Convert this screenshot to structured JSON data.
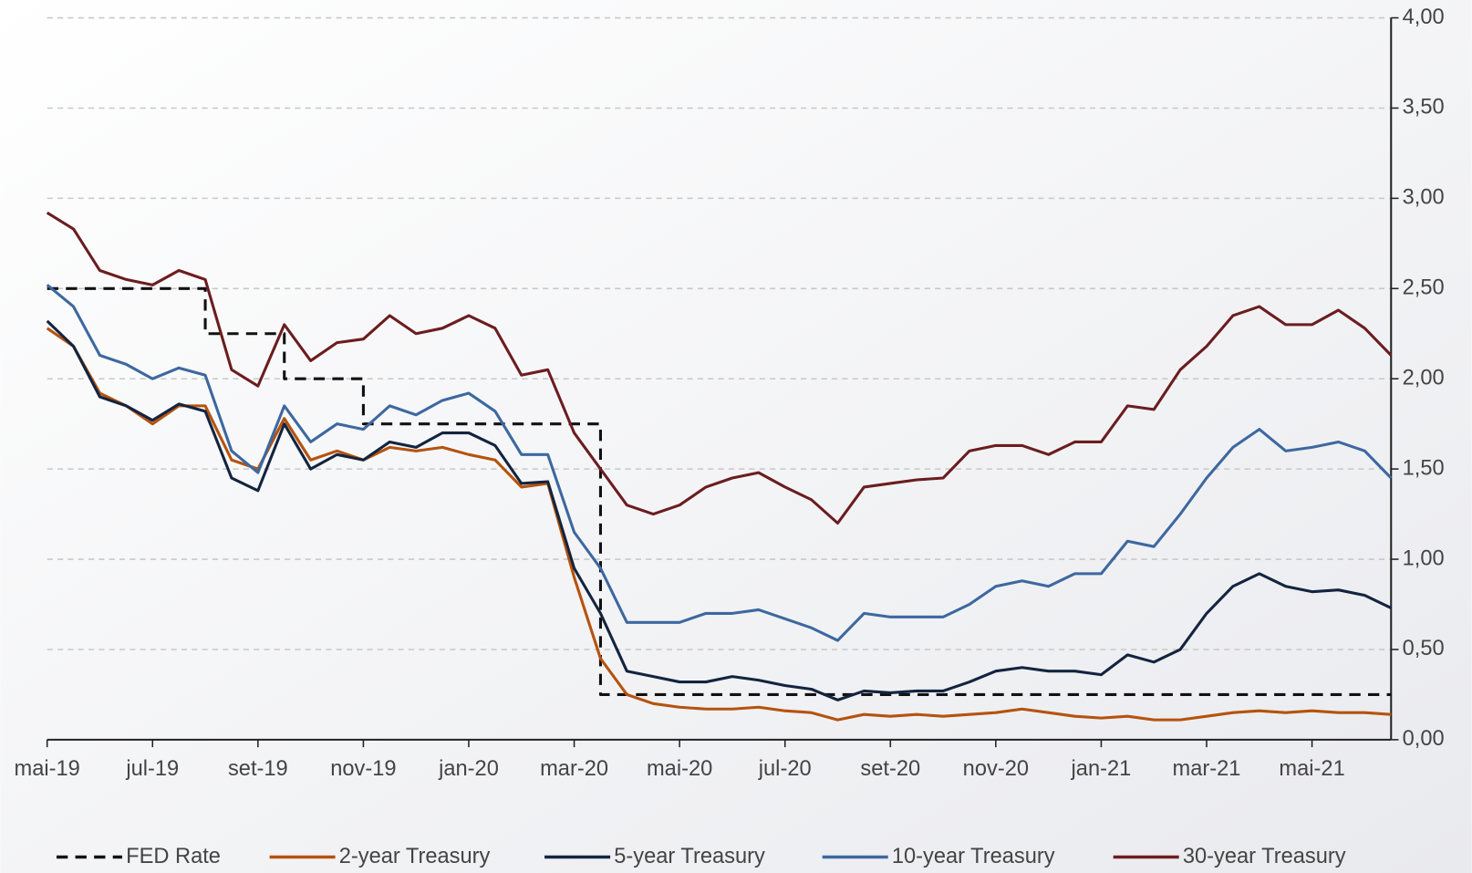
{
  "chart_data": {
    "type": "line",
    "categories": [
      "mai-19",
      null,
      null,
      null,
      "jul-19",
      null,
      null,
      null,
      "set-19",
      null,
      null,
      null,
      "nov-19",
      null,
      null,
      null,
      "jan-20",
      null,
      null,
      null,
      "mar-20",
      null,
      null,
      null,
      "mai-20",
      null,
      null,
      null,
      "jul-20",
      null,
      null,
      null,
      "set-20",
      null,
      null,
      null,
      "nov-20",
      null,
      null,
      null,
      "jan-21",
      null,
      null,
      null,
      "mar-21",
      null,
      null,
      null,
      "mai-21",
      null,
      null,
      null
    ],
    "series": [
      {
        "name": "FED Rate",
        "color": "#111111",
        "dash": true,
        "step": true,
        "values": [
          2.5,
          2.5,
          2.5,
          2.5,
          2.5,
          2.5,
          2.25,
          2.25,
          2.25,
          2.0,
          2.0,
          2.0,
          1.75,
          1.75,
          1.75,
          1.75,
          1.75,
          1.75,
          1.75,
          1.75,
          1.75,
          0.25,
          0.25,
          0.25,
          0.25,
          0.25,
          0.25,
          0.25,
          0.25,
          0.25,
          0.25,
          0.25,
          0.25,
          0.25,
          0.25,
          0.25,
          0.25,
          0.25,
          0.25,
          0.25,
          0.25,
          0.25,
          0.25,
          0.25,
          0.25,
          0.25,
          0.25,
          0.25,
          0.25,
          0.25,
          0.25,
          0.25
        ]
      },
      {
        "name": "2-year Treasury",
        "color": "#b5530e",
        "values": [
          2.28,
          2.18,
          1.92,
          1.85,
          1.75,
          1.85,
          1.85,
          1.55,
          1.5,
          1.78,
          1.55,
          1.6,
          1.55,
          1.62,
          1.6,
          1.62,
          1.58,
          1.55,
          1.4,
          1.42,
          0.9,
          0.45,
          0.25,
          0.2,
          0.18,
          0.17,
          0.17,
          0.18,
          0.16,
          0.15,
          0.11,
          0.14,
          0.13,
          0.14,
          0.13,
          0.14,
          0.15,
          0.17,
          0.15,
          0.13,
          0.12,
          0.13,
          0.11,
          0.11,
          0.13,
          0.15,
          0.16,
          0.15,
          0.16,
          0.15,
          0.15,
          0.14
        ]
      },
      {
        "name": "5-year Treasury",
        "color": "#13243f",
        "values": [
          2.32,
          2.18,
          1.9,
          1.85,
          1.77,
          1.86,
          1.82,
          1.45,
          1.38,
          1.75,
          1.5,
          1.58,
          1.55,
          1.65,
          1.62,
          1.7,
          1.7,
          1.63,
          1.42,
          1.43,
          0.95,
          0.7,
          0.38,
          0.35,
          0.32,
          0.32,
          0.35,
          0.33,
          0.3,
          0.28,
          0.22,
          0.27,
          0.26,
          0.27,
          0.27,
          0.32,
          0.38,
          0.4,
          0.38,
          0.38,
          0.36,
          0.47,
          0.43,
          0.5,
          0.7,
          0.85,
          0.92,
          0.85,
          0.82,
          0.83,
          0.8,
          0.73
        ]
      },
      {
        "name": "10-year Treasury",
        "color": "#3d68a0",
        "values": [
          2.52,
          2.4,
          2.13,
          2.08,
          2.0,
          2.06,
          2.02,
          1.6,
          1.48,
          1.85,
          1.65,
          1.75,
          1.72,
          1.85,
          1.8,
          1.88,
          1.92,
          1.82,
          1.58,
          1.58,
          1.15,
          0.95,
          0.65,
          0.65,
          0.65,
          0.7,
          0.7,
          0.72,
          0.67,
          0.62,
          0.55,
          0.7,
          0.68,
          0.68,
          0.68,
          0.75,
          0.85,
          0.88,
          0.85,
          0.92,
          0.92,
          1.1,
          1.07,
          1.25,
          1.45,
          1.62,
          1.72,
          1.6,
          1.62,
          1.65,
          1.6,
          1.45
        ]
      },
      {
        "name": "30-year Treasury",
        "color": "#6b1d1f",
        "values": [
          2.92,
          2.83,
          2.6,
          2.55,
          2.52,
          2.6,
          2.55,
          2.05,
          1.96,
          2.3,
          2.1,
          2.2,
          2.22,
          2.35,
          2.25,
          2.28,
          2.35,
          2.28,
          2.02,
          2.05,
          1.7,
          1.5,
          1.3,
          1.25,
          1.3,
          1.4,
          1.45,
          1.48,
          1.4,
          1.33,
          1.2,
          1.4,
          1.42,
          1.44,
          1.45,
          1.6,
          1.63,
          1.63,
          1.58,
          1.65,
          1.65,
          1.85,
          1.83,
          2.05,
          2.18,
          2.35,
          2.4,
          2.3,
          2.3,
          2.38,
          2.28,
          2.13
        ]
      }
    ],
    "ylim": [
      0,
      4
    ],
    "yticks": [
      {
        "value": 0,
        "label": "0,00"
      },
      {
        "value": 0.5,
        "label": "0,50"
      },
      {
        "value": 1,
        "label": "1,00"
      },
      {
        "value": 1.5,
        "label": "1,50"
      },
      {
        "value": 2,
        "label": "2,00"
      },
      {
        "value": 2.5,
        "label": "2,50"
      },
      {
        "value": 3,
        "label": "3,00"
      },
      {
        "value": 3.5,
        "label": "3,50"
      },
      {
        "value": 4,
        "label": "4,00"
      }
    ],
    "grid": true,
    "y_axis_side": "right",
    "legend": "bottom"
  }
}
